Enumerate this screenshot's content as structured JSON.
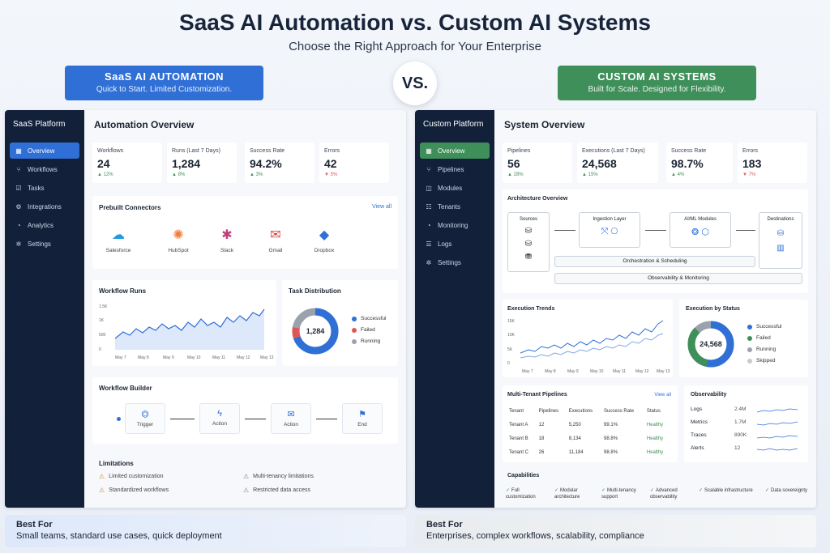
{
  "title": "SaaS AI Automation vs. Custom AI Systems",
  "subtitle": "Choose the Right Approach for Your Enterprise",
  "vs": "VS.",
  "left": {
    "banner": {
      "title": "SaaS AI AUTOMATION",
      "tagline": "Quick to Start. Limited Customization."
    },
    "brand": "SaaS Platform",
    "nav": [
      {
        "label": "Overview",
        "icon": "grid-icon"
      },
      {
        "label": "Workflows",
        "icon": "workflow-icon"
      },
      {
        "label": "Tasks",
        "icon": "tasks-icon"
      },
      {
        "label": "Integrations",
        "icon": "integrations-icon"
      },
      {
        "label": "Analytics",
        "icon": "analytics-icon"
      },
      {
        "label": "Settings",
        "icon": "gear-icon"
      }
    ],
    "page_title": "Automation Overview",
    "kpis": [
      {
        "label": "Workflows",
        "value": "24",
        "delta": "▲ 12%"
      },
      {
        "label": "Runs (Last 7 Days)",
        "value": "1,284",
        "delta": "▲ 8%"
      },
      {
        "label": "Success Rate",
        "value": "94.2%",
        "delta": "▲ 3%"
      },
      {
        "label": "Errors",
        "value": "42",
        "delta": "▼ 5%"
      }
    ],
    "connectors": {
      "title": "Prebuilt Connectors",
      "link": "View all",
      "items": [
        "Salesforce",
        "HubSpot",
        "Slack",
        "Gmail",
        "Dropbox"
      ]
    },
    "runs": {
      "title": "Workflow Runs",
      "yticks": [
        "1.5K",
        "1K",
        "500",
        "0"
      ],
      "xticks": [
        "May 7",
        "May 8",
        "May 9",
        "May 10",
        "May 11",
        "May 12",
        "May 13"
      ]
    },
    "dist": {
      "title": "Task Distribution",
      "center": "1,284",
      "legend": [
        "Successful",
        "Failed",
        "Running"
      ]
    },
    "builder": {
      "title": "Workflow Builder",
      "nodes": [
        "Trigger",
        "Action",
        "Action",
        "End"
      ]
    },
    "limits": {
      "title": "Limitations",
      "items": [
        "Limited customization",
        "Multi-tenancy limitations",
        "Standardized workflows",
        "Restricted data access"
      ]
    },
    "best": {
      "title": "Best For",
      "desc": "Small teams, standard use cases, quick deployment"
    }
  },
  "right": {
    "banner": {
      "title": "CUSTOM AI SYSTEMS",
      "tagline": "Built for Scale. Designed for Flexibility."
    },
    "brand": "Custom Platform",
    "nav": [
      {
        "label": "Overview",
        "icon": "grid-icon"
      },
      {
        "label": "Pipelines",
        "icon": "pipeline-icon"
      },
      {
        "label": "Modules",
        "icon": "modules-icon"
      },
      {
        "label": "Tenants",
        "icon": "tenants-icon"
      },
      {
        "label": "Monitoring",
        "icon": "monitoring-icon"
      },
      {
        "label": "Logs",
        "icon": "logs-icon"
      },
      {
        "label": "Settings",
        "icon": "gear-icon"
      }
    ],
    "page_title": "System Overview",
    "kpis": [
      {
        "label": "Pipelines",
        "value": "56",
        "delta": "▲ 28%"
      },
      {
        "label": "Executions (Last 7 Days)",
        "value": "24,568",
        "delta": "▲ 15%"
      },
      {
        "label": "Success Rate",
        "value": "98.7%",
        "delta": "▲ 4%"
      },
      {
        "label": "Errors",
        "value": "183",
        "delta": "▼ 7%"
      }
    ],
    "arch": {
      "title": "Architecture Overview",
      "sources": "Sources",
      "ingestion": "Ingestion Layer",
      "aiml": "AI/ML Modules",
      "dest": "Destinations",
      "orch": "Orchestration & Scheduling",
      "obs": "Observability & Monitoring"
    },
    "trends": {
      "title": "Execution Trends",
      "yticks": [
        "15K",
        "10K",
        "5K",
        "0"
      ],
      "xticks": [
        "May 7",
        "May 8",
        "May 9",
        "May 10",
        "May 11",
        "May 12",
        "May 13"
      ]
    },
    "status": {
      "title": "Execution by Status",
      "center": "24,568",
      "legend": [
        "Successful",
        "Failed",
        "Running",
        "Skipped"
      ]
    },
    "tenants": {
      "title": "Multi-Tenant Pipelines",
      "link": "View all",
      "headers": [
        "Tenant",
        "Pipelines",
        "Executions",
        "Success Rate",
        "Status"
      ],
      "rows": [
        [
          "Tenant A",
          "12",
          "5,250",
          "99.1%",
          "Healthy"
        ],
        [
          "Tenant B",
          "18",
          "8,134",
          "98.8%",
          "Healthy"
        ],
        [
          "Tenant C",
          "26",
          "11,184",
          "98.8%",
          "Healthy"
        ]
      ]
    },
    "observability": {
      "title": "Observability",
      "rows": [
        [
          "Logs",
          "2.4M"
        ],
        [
          "Metrics",
          "1.7M"
        ],
        [
          "Traces",
          "890K"
        ],
        [
          "Alerts",
          "12"
        ]
      ]
    },
    "caps": {
      "title": "Capabilities",
      "items": [
        "Full customization",
        "Modular architecture",
        "Multi-tenancy support",
        "Advanced observability",
        "Scalable infrastructure",
        "Data sovereignty"
      ]
    },
    "best": {
      "title": "Best For",
      "desc": "Enterprises, complex workflows, scalability, compliance"
    }
  },
  "colors": {
    "blue": "#2f6fd6",
    "green": "#3f8f5a",
    "navy": "#12203a",
    "red": "#e05555",
    "gray": "#9aa3ad"
  }
}
